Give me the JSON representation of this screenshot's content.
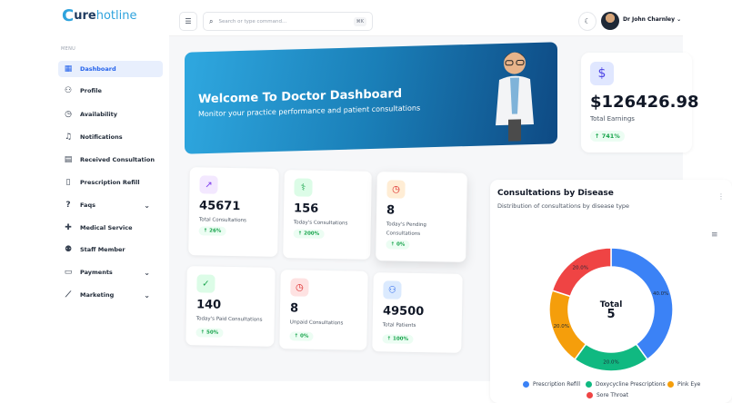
{
  "brand": {
    "logo": "urehotline",
    "logo_prefix": "C",
    "logo_mid": "ure",
    "logo_end": "hotline"
  },
  "sidebar": {
    "menu_label": "MENU",
    "items": [
      {
        "label": "Dashboard",
        "icon": "grid-icon",
        "active": true
      },
      {
        "label": "Profile",
        "icon": "user-icon"
      },
      {
        "label": "Availability",
        "icon": "clock-icon"
      },
      {
        "label": "Notifications",
        "icon": "bell-icon"
      },
      {
        "label": "Received Consultation",
        "icon": "document-icon"
      },
      {
        "label": "Prescription Refill",
        "icon": "file-icon"
      },
      {
        "label": "Faqs",
        "icon": "question-icon",
        "expandable": true
      },
      {
        "label": "Medical Service",
        "icon": "medical-bag-icon"
      },
      {
        "label": "Staff Member",
        "icon": "users-icon"
      },
      {
        "label": "Payments",
        "icon": "card-icon",
        "expandable": true
      },
      {
        "label": "Marketing",
        "icon": "chart-icon",
        "expandable": true
      }
    ]
  },
  "topbar": {
    "search_placeholder": "Search or type command...",
    "shortcut": "⌘K",
    "user_name": "Dr John Charnley"
  },
  "banner": {
    "title": "Welcome To Doctor Dashboard",
    "subtitle": "Monitor your practice performance and patient consultations"
  },
  "earnings": {
    "value": "$126426.98",
    "label": "Total Earnings",
    "change": "↑ 741%"
  },
  "stats": [
    {
      "value": "45671",
      "label": "Total Consultations",
      "change": "↑ 26%",
      "icon": "trending-up-icon",
      "color": "#7c3aed",
      "bg": "#f3e8ff"
    },
    {
      "value": "156",
      "label": "Today's Consultations",
      "change": "↑ 200%",
      "icon": "stethoscope-icon",
      "color": "#16a34a",
      "bg": "#dcfce7"
    },
    {
      "value": "8",
      "label": "Today's Pending Consultations",
      "change": "↑ 0%",
      "icon": "clock-icon",
      "color": "#dc2626",
      "bg": "#ffedd5"
    },
    {
      "value": "140",
      "label": "Today's Paid Consultations",
      "change": "↑ 50%",
      "icon": "check-circle-icon",
      "color": "#16a34a",
      "bg": "#dcfce7"
    },
    {
      "value": "8",
      "label": "Unpaid Consultations",
      "change": "↑ 0%",
      "icon": "clock-icon",
      "color": "#dc2626",
      "bg": "#fee2e2"
    },
    {
      "value": "49500",
      "label": "Total Patients",
      "change": "↑ 100%",
      "icon": "users-icon",
      "color": "#2563eb",
      "bg": "#dbeafe"
    }
  ],
  "chart_data": {
    "type": "pie",
    "title": "Consultations by Disease",
    "subtitle": "Distribution of consultations by disease type",
    "center_label": "Total",
    "center_value": "5",
    "categories": [
      "Prescription Refill",
      "Doxycycline Prescriptions",
      "Pink Eye",
      "Sore Throat"
    ],
    "values": [
      40.0,
      20.0,
      20.0,
      20.0
    ],
    "labels": [
      "40.0%",
      "20.0%",
      "20.0%",
      "20.0%"
    ],
    "colors": [
      "#3b82f6",
      "#10b981",
      "#f59e0b",
      "#ef4444"
    ],
    "legend_position": "bottom"
  }
}
